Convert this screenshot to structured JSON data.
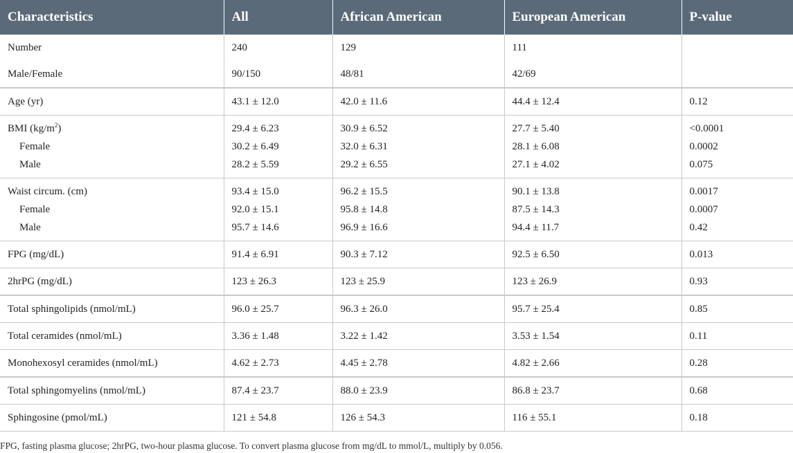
{
  "table": {
    "headers": [
      "Characteristics",
      "All",
      "African American",
      "European American",
      "P-value"
    ],
    "rows": [
      {
        "label": "Number",
        "all": "240",
        "aa": "129",
        "ea": "111",
        "p": ""
      },
      {
        "label": "Male/Female",
        "all": "90/150",
        "aa": "48/81",
        "ea": "42/69",
        "p": ""
      },
      {
        "label": "Age (yr)",
        "all": "43.1 ± 12.0",
        "aa": "42.0 ± 11.6",
        "ea": "44.4 ± 12.4",
        "p": "0.12"
      },
      {
        "label": "BMI (kg/m²)",
        "all": "29.4 ± 6.23",
        "aa": "30.9 ± 6.52",
        "ea": "27.7 ± 5.40",
        "p": "<0.0001",
        "sub": [
          {
            "label": "Female",
            "all": "30.2 ± 6.49",
            "aa": "32.0 ± 6.31",
            "ea": "28.1 ± 6.08",
            "p": "0.0002"
          },
          {
            "label": "Male",
            "all": "28.2 ± 5.59",
            "aa": "29.2 ± 6.55",
            "ea": "27.1 ± 4.02",
            "p": "0.075"
          }
        ]
      },
      {
        "label": "Waist circum. (cm)",
        "all": "93.4 ± 15.0",
        "aa": "96.2 ± 15.5",
        "ea": "90.1 ± 13.8",
        "p": "0.0017",
        "sub": [
          {
            "label": "Female",
            "all": "92.0 ± 15.1",
            "aa": "95.8 ± 14.8",
            "ea": "87.5 ± 14.3",
            "p": "0.0007"
          },
          {
            "label": "Male",
            "all": "95.7 ± 14.6",
            "aa": "96.9 ± 16.6",
            "ea": "94.4 ± 11.7",
            "p": "0.42"
          }
        ]
      },
      {
        "label": "FPG (mg/dL)",
        "all": "91.4 ± 6.91",
        "aa": "90.3 ± 7.12",
        "ea": "92.5 ± 6.50",
        "p": "0.013"
      },
      {
        "label": "2hrPG (mg/dL)",
        "all": "123 ± 26.3",
        "aa": "123 ± 25.9",
        "ea": "123 ± 26.9",
        "p": "0.93"
      },
      {
        "label": "Total sphingolipids (nmol/mL)",
        "all": "96.0 ± 25.7",
        "aa": "96.3 ± 26.0",
        "ea": "95.7 ± 25.4",
        "p": "0.85"
      },
      {
        "label": "Total ceramides (nmol/mL)",
        "all": "3.36 ± 1.48",
        "aa": "3.22 ± 1.42",
        "ea": "3.53 ± 1.54",
        "p": "0.11"
      },
      {
        "label": "Monohexosyl ceramides (nmol/mL)",
        "all": "4.62 ± 2.73",
        "aa": "4.45 ± 2.78",
        "ea": "4.82 ± 2.66",
        "p": "0.28"
      },
      {
        "label": "Total sphingomyelins (nmol/mL)",
        "all": "87.4 ± 23.7",
        "aa": "88.0 ± 23.9",
        "ea": "86.8 ± 23.7",
        "p": "0.68"
      },
      {
        "label": "Sphingosine (pmol/mL)",
        "all": "121 ± 54.8",
        "aa": "126 ± 54.3",
        "ea": "116 ± 55.1",
        "p": "0.18"
      }
    ]
  },
  "footnote": "FPG, fasting plasma glucose; 2hrPG, two-hour plasma glucose. To convert plasma glucose from mg/dL to mmol/L, multiply by 0.056."
}
